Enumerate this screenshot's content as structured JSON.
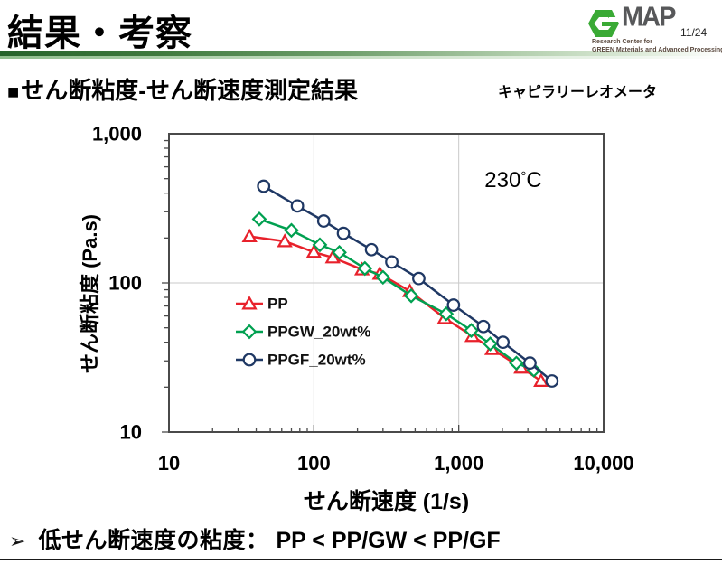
{
  "header": {
    "title": "結果・考察",
    "page_number": "11/24",
    "logo_icon": "g-hexagon",
    "logo_map": "MAP",
    "org_line1": "Research Center for",
    "org_line2": "GREEN Materials and Advanced Processing",
    "logo_green": "#3aaa35",
    "logo_gray": "#57585a"
  },
  "subtitle": {
    "bullet": "■",
    "text": "せん断粘度-せん断速度測定結果",
    "note": "キャピラリーレオメータ"
  },
  "conclusion": {
    "bullet": "➢",
    "label": "低せん断速度の粘度：",
    "formula": "PP < PP/GW < PP/GF"
  },
  "chart_data": {
    "type": "line",
    "x_scale": "log",
    "y_scale": "log",
    "xlabel": "せん断速度 (1/s)",
    "ylabel": "せん断粘度 (Pa.s)",
    "xlim": [
      10,
      10000
    ],
    "ylim": [
      10,
      1000
    ],
    "grid": true,
    "annotation": "230°C",
    "legend_position": "inside-lower-left",
    "frame_color": "#4a4a4a",
    "grid_color": "#c9c9c9",
    "x_ticks": [
      {
        "v": 10,
        "label": "10"
      },
      {
        "v": 100,
        "label": "100"
      },
      {
        "v": 1000,
        "label": "1,000"
      },
      {
        "v": 10000,
        "label": "10,000"
      }
    ],
    "y_ticks": [
      {
        "v": 10,
        "label": "10"
      },
      {
        "v": 100,
        "label": "100"
      },
      {
        "v": 1000,
        "label": "1,000"
      }
    ],
    "series": [
      {
        "name": "PP",
        "color": "#e8212b",
        "marker": "triangle",
        "x": [
          36,
          63,
          100,
          135,
          215,
          285,
          460,
          800,
          1240,
          1700,
          2700,
          3700
        ],
        "y": [
          205,
          190,
          161,
          148,
          123,
          115,
          88,
          58,
          44,
          36,
          27,
          22
        ]
      },
      {
        "name": "PPGW_20wt%",
        "color": "#00a050",
        "marker": "diamond",
        "x": [
          42,
          70,
          110,
          150,
          225,
          300,
          470,
          820,
          1220,
          1650,
          2500,
          3300
        ],
        "y": [
          268,
          225,
          180,
          160,
          125,
          109,
          82,
          62,
          48,
          39,
          29,
          26
        ]
      },
      {
        "name": "PPGF_20wt%",
        "color": "#1f3864",
        "marker": "circle",
        "x": [
          45,
          77,
          117,
          160,
          250,
          345,
          530,
          920,
          1480,
          2020,
          3100,
          4400
        ],
        "y": [
          445,
          328,
          260,
          215,
          167,
          138,
          107,
          71,
          51,
          40,
          29,
          22
        ]
      }
    ]
  }
}
